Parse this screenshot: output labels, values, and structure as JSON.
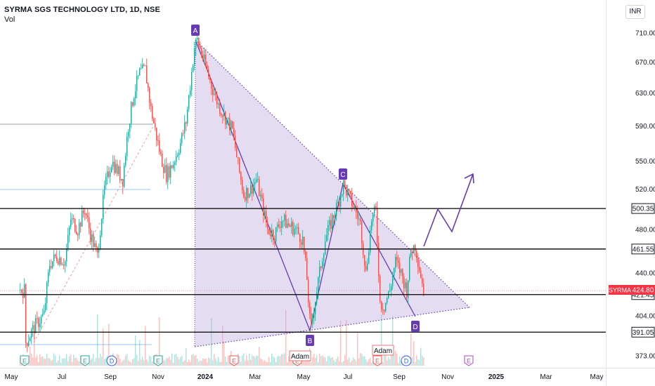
{
  "header": {
    "symbol_title": "SYRMA SGS TECHNOLOGY LTD, 1D, NSE",
    "indicator": "Vol",
    "currency": "INR"
  },
  "chart_data": {
    "type": "candlestick",
    "y_axis": {
      "ticks": [
        710,
        670,
        630,
        590,
        550,
        520,
        480,
        440,
        404,
        373
      ],
      "tick_labels": [
        "710.00",
        "670.00",
        "630.00",
        "590.00",
        "550.00",
        "520.00",
        "480.00",
        "440.00",
        "404.00",
        "373.00"
      ],
      "scale": "log"
    },
    "x_axis": {
      "tick_labels": [
        "May",
        "Jul",
        "Sep",
        "Nov",
        "2024",
        "Mar",
        "May",
        "Jul",
        "Sep",
        "Nov",
        "2025",
        "Mar",
        "May"
      ]
    },
    "horizontal_levels": [
      {
        "value": 500.35,
        "label": "500.35"
      },
      {
        "value": 461.55,
        "label": "461.55"
      },
      {
        "value": 421.45,
        "label": "421.45"
      },
      {
        "value": 391.05,
        "label": "391.05"
      }
    ],
    "last_price": {
      "symbol": "SYRMA",
      "value": "424.80"
    },
    "pattern_points": [
      {
        "label": "A",
        "value": 700
      },
      {
        "label": "B",
        "value": 392
      },
      {
        "label": "C",
        "value": 525
      },
      {
        "label": "D",
        "value": 412
      }
    ],
    "event_markers": [
      "E",
      "E",
      "D",
      "E",
      "E",
      "E",
      "E",
      "D",
      "E"
    ],
    "annotations": [
      "Adam",
      "Adam"
    ],
    "colors": {
      "up": "#26a69a",
      "down": "#ef5350",
      "pattern": "#673ab7",
      "pattern_fill": "#b39ddb",
      "price_badge": "#f23645",
      "level": "#000000"
    }
  }
}
